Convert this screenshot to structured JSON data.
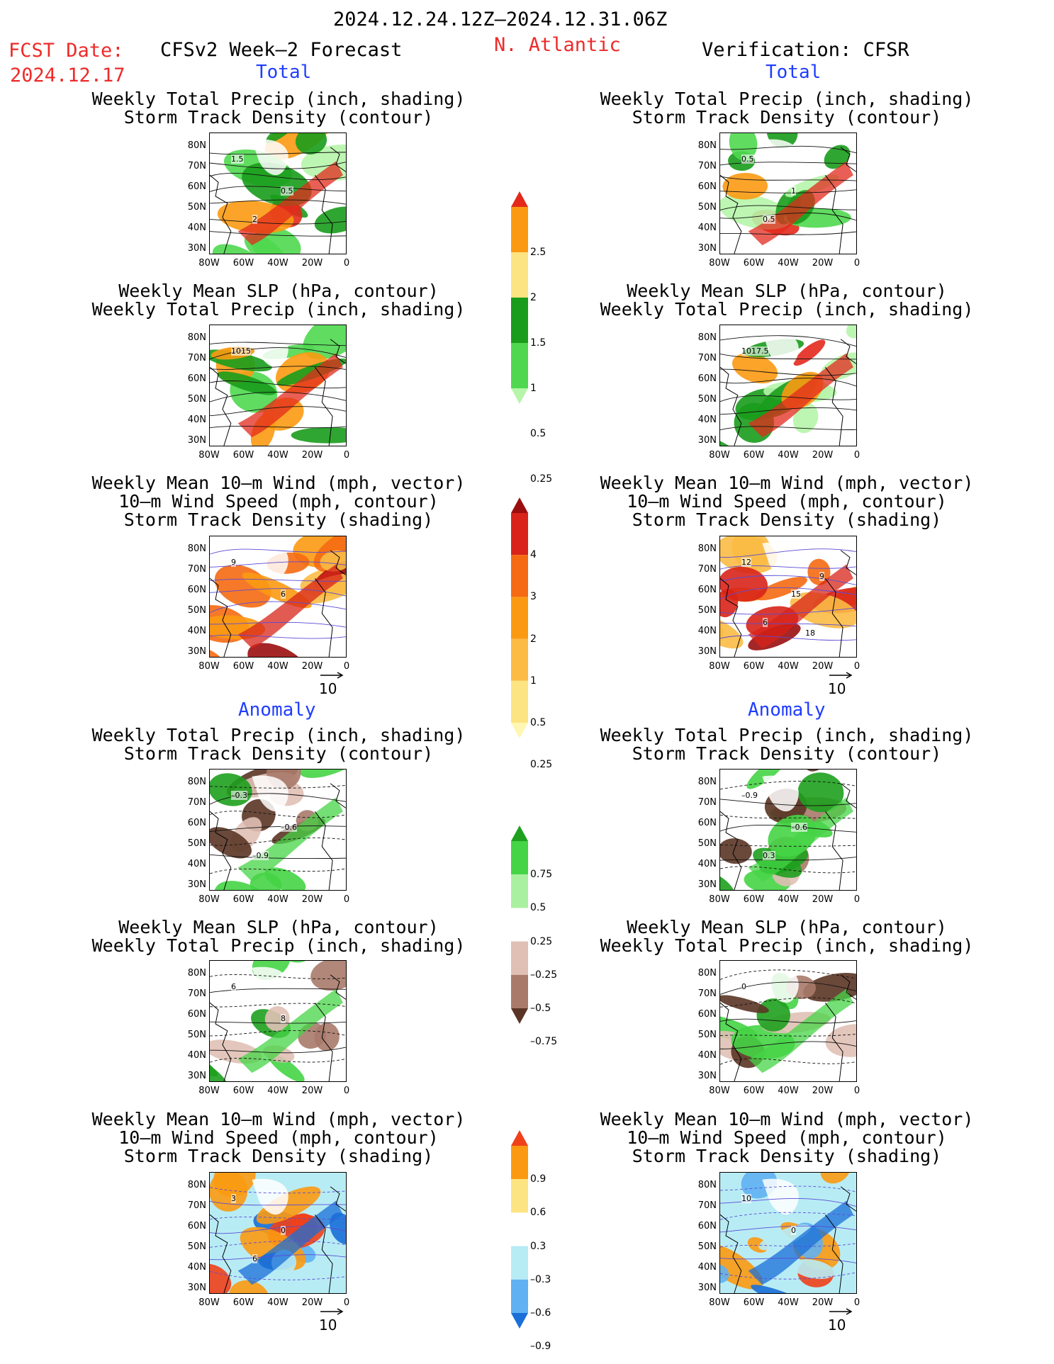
{
  "header": {
    "date_range": "2024.12.24.12Z–2024.12.31.06Z",
    "fcst_label": "FCST Date:",
    "fcst_date": "2024.12.17",
    "model_title": "CFSv2 Week–2 Forecast",
    "region": "N. Atlantic",
    "verification": "Verification: CFSR"
  },
  "sections": {
    "total": "Total",
    "anomaly": "Anomaly"
  },
  "panel_titles": {
    "precip_track": [
      "Weekly Total Precip (inch, shading)",
      "Storm Track Density (contour)"
    ],
    "slp_precip": [
      "Weekly Mean SLP (hPa, contour)",
      "Weekly Total Precip (inch, shading)"
    ],
    "wind_track": [
      "Weekly Mean 10–m Wind (mph, vector)",
      "10–m Wind Speed (mph, contour)",
      "Storm Track Density (shading)"
    ]
  },
  "axes": {
    "lat_ticks": [
      "80N",
      "70N",
      "60N",
      "50N",
      "40N",
      "30N"
    ],
    "lon_ticks": [
      "80W",
      "60W",
      "40W",
      "20W",
      "0"
    ]
  },
  "vector_reference": "10",
  "colorbars": {
    "precip_total": {
      "labels": [
        "2.5",
        "2",
        "1.5",
        "1",
        "0.5",
        "0.25"
      ],
      "colors": [
        "#e3291c",
        "#fb9a12",
        "#fde482",
        "#199c1c",
        "#4fd84f",
        "#b6f5aa"
      ]
    },
    "track_total": {
      "labels": [
        "4",
        "3",
        "2",
        "1",
        "0.5",
        "0.25"
      ],
      "colors": [
        "#9b0e0e",
        "#d8241a",
        "#f56a12",
        "#fb9a12",
        "#fbbb45",
        "#fde482",
        "#fff6b3"
      ]
    },
    "precip_anom": {
      "labels": [
        "0.75",
        "0.5",
        "0.25",
        "–0.25",
        "–0.5",
        "–0.75"
      ],
      "colors": [
        "#1ea01e",
        "#45d445",
        "#a9f0a0",
        "#ffffff",
        "#e0c0b5",
        "#a97a6a",
        "#5a3525"
      ]
    },
    "track_anom": {
      "labels": [
        "0.9",
        "0.6",
        "0.3",
        "–0.3",
        "–0.6",
        "–0.9"
      ],
      "colors": [
        "#f0401a",
        "#fb9a12",
        "#fde482",
        "#ffffff",
        "#b8ecf5",
        "#5fb1f2",
        "#1a6fd8"
      ]
    }
  },
  "contour_labels": {
    "fc_total_precip": [
      "1.5",
      "0.5",
      "2"
    ],
    "ver_total_precip": [
      "0.5",
      "1",
      "0.5"
    ],
    "fc_total_slp": [
      "1015"
    ],
    "ver_total_slp": [
      "1017.5"
    ],
    "fc_total_wind": [
      "9",
      "6"
    ],
    "ver_total_wind": [
      "12",
      "15",
      "6",
      "9",
      "18"
    ],
    "fc_anom_precip": [
      "–0.3",
      "–0.6",
      "–0.9"
    ],
    "ver_anom_precip": [
      "–0.9",
      "–0.6",
      "0.3"
    ],
    "fc_anom_slp": [
      "6",
      "8"
    ],
    "ver_anom_slp": [
      "0"
    ],
    "fc_anom_wind": [
      "3",
      "0",
      "6"
    ],
    "ver_anom_wind": [
      "10",
      "0"
    ]
  }
}
